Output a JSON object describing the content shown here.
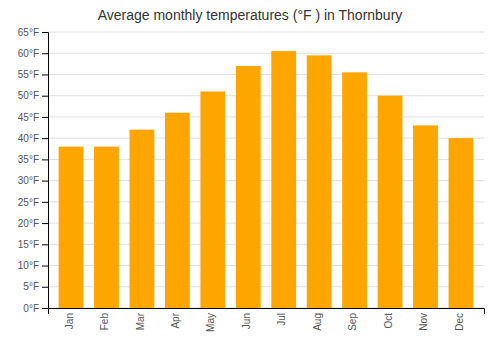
{
  "chart_data": {
    "type": "bar",
    "title": "Average monthly temperatures (°F ) in Thornbury",
    "categories": [
      "Jan",
      "Feb",
      "Mar",
      "Apr",
      "May",
      "Jun",
      "Jul",
      "Aug",
      "Sep",
      "Oct",
      "Nov",
      "Dec"
    ],
    "values": [
      38,
      38,
      42,
      46,
      51,
      57,
      60.5,
      59.5,
      55.5,
      50,
      43,
      40
    ],
    "color": "#FFA500",
    "ylim": [
      0,
      65
    ],
    "yticks": [
      {
        "value": 0,
        "label": "0°F"
      },
      {
        "value": 5,
        "label": "5°F"
      },
      {
        "value": 10,
        "label": "10°F"
      },
      {
        "value": 15,
        "label": "15°F"
      },
      {
        "value": 20,
        "label": "20°F"
      },
      {
        "value": 25,
        "label": "25°F"
      },
      {
        "value": 30,
        "label": "30°F"
      },
      {
        "value": 35,
        "label": "35°F"
      },
      {
        "value": 40,
        "label": "40°F"
      },
      {
        "value": 45,
        "label": "45°F"
      },
      {
        "value": 50,
        "label": "50°F"
      },
      {
        "value": 55,
        "label": "55°F"
      },
      {
        "value": 60,
        "label": "60°F"
      },
      {
        "value": 65,
        "label": "65°F"
      }
    ],
    "grid": true
  }
}
